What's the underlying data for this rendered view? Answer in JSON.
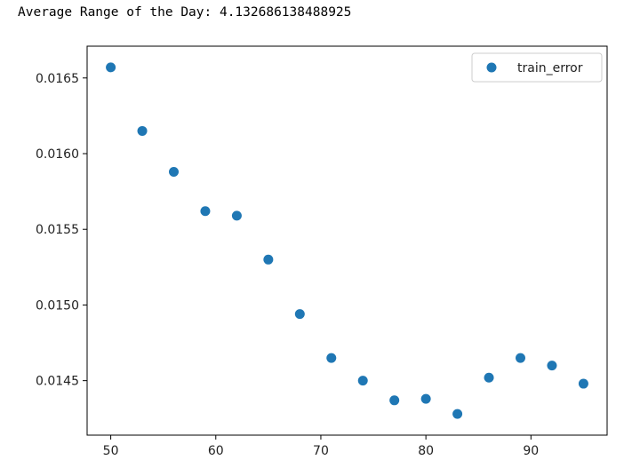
{
  "output_text": "Average Range of the Day: 4.132686138488925",
  "chart_data": {
    "type": "scatter",
    "series": [
      {
        "name": "train_error",
        "color": "#1f77b4",
        "x": [
          50,
          53,
          56,
          59,
          62,
          65,
          68,
          71,
          74,
          77,
          80,
          83,
          86,
          89,
          92,
          95
        ],
        "y": [
          0.01657,
          0.01615,
          0.01588,
          0.01562,
          0.01559,
          0.0153,
          0.01494,
          0.01465,
          0.0145,
          0.01437,
          0.01438,
          0.01428,
          0.01452,
          0.01465,
          0.0146,
          0.01448
        ]
      }
    ],
    "xticks": [
      50,
      60,
      70,
      80,
      90
    ],
    "xtick_labels": [
      "50",
      "60",
      "70",
      "80",
      "90"
    ],
    "yticks": [
      0.0145,
      0.015,
      0.0155,
      0.016,
      0.0165
    ],
    "ytick_labels": [
      "0.0145",
      "0.0150",
      "0.0155",
      "0.0160",
      "0.0165"
    ],
    "xlim": [
      47.75,
      97.25
    ],
    "ylim": [
      0.01414,
      0.01671
    ],
    "xlabel": "",
    "ylabel": "",
    "title": "",
    "grid": false,
    "legend": "top-right"
  }
}
